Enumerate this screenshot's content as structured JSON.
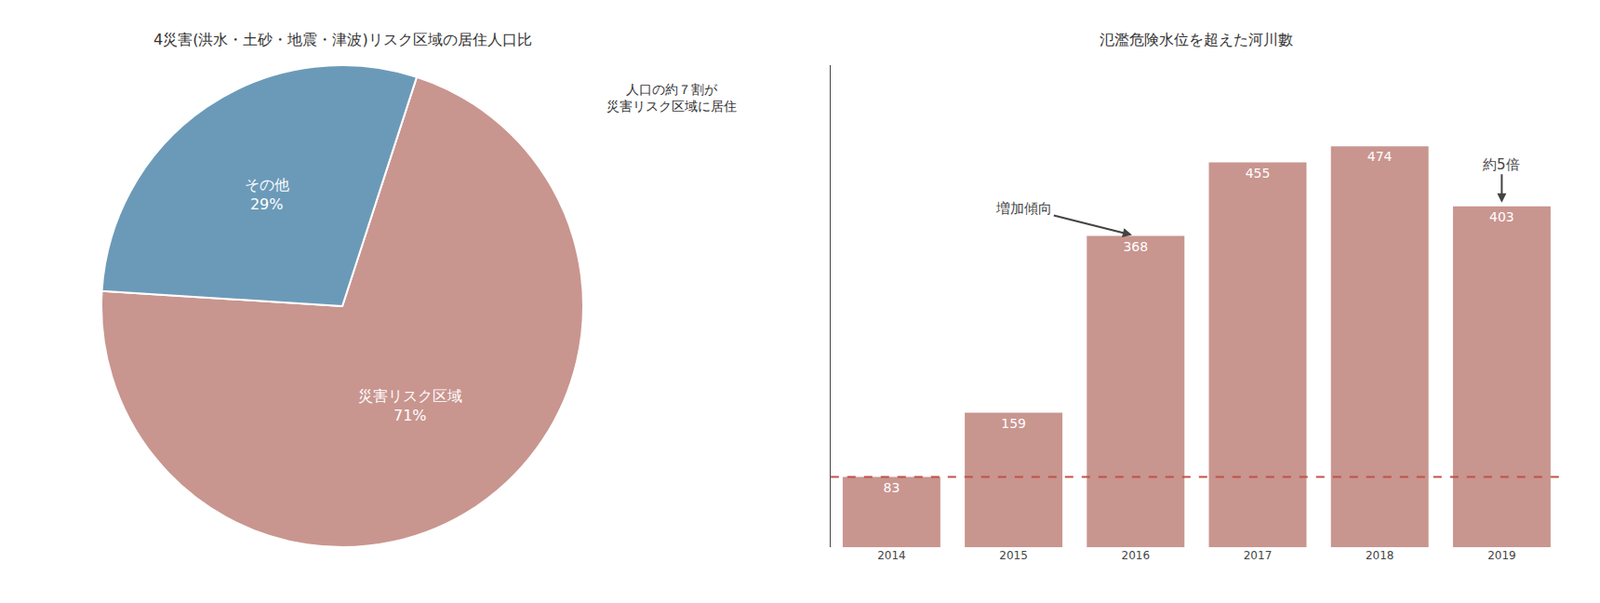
{
  "chart_data": [
    {
      "type": "pie",
      "title": "4災害(洪水・土砂・地震・津波)リスク区域の居住人口比",
      "categories": [
        "災害リスク区域",
        "その他"
      ],
      "values": [
        71,
        29
      ],
      "value_labels": [
        "71%",
        "29%"
      ],
      "data_labels": true,
      "colors": [
        "#c9958f",
        "#6b9ab8"
      ],
      "annotations": [
        "人口の約７割が\n災害リスク区域に居住"
      ]
    },
    {
      "type": "bar",
      "title": "氾濫危険水位を超えた河川數",
      "categories": [
        "2014",
        "2015",
        "2016",
        "2017",
        "2018",
        "2019"
      ],
      "values": [
        83,
        159,
        368,
        455,
        474,
        403
      ],
      "color": "#c9958f",
      "data_labels": true,
      "ylim": [
        0,
        570
      ],
      "grid": false,
      "tick_labels": "x",
      "reference_line": {
        "y": 83,
        "color": "#c0524a",
        "line_style": "dashed"
      },
      "annotations": [
        "増加傾向",
        "約5倍"
      ]
    }
  ]
}
